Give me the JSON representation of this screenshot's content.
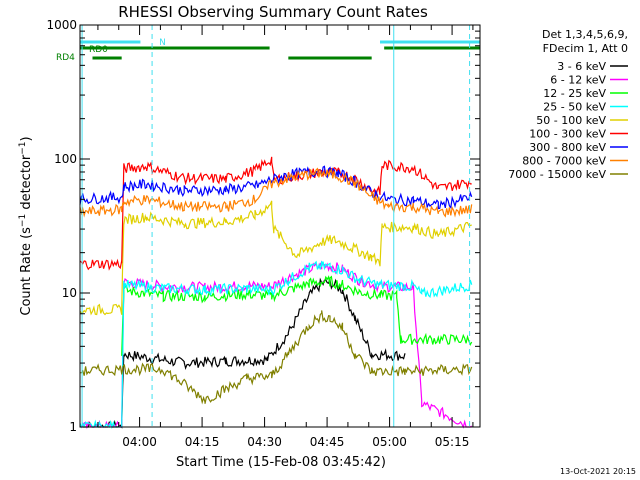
{
  "chart_data": {
    "type": "line",
    "title": "RHESSI Observing Summary Count Rates",
    "xlabel_prefix": "Start Time (",
    "xlabel": "Start Time (15-Feb-08 03:45:42)",
    "ylabel": "Count Rate (s⁻¹ detector⁻¹)",
    "y_scale": "log",
    "ylim": [
      1,
      1000
    ],
    "y_ticks": [
      "1",
      "10",
      "100",
      "1000"
    ],
    "xlim_minutes": [
      0,
      96
    ],
    "x_ticks": [
      {
        "minute": 14.3,
        "label": "04:00"
      },
      {
        "minute": 29.3,
        "label": "04:15"
      },
      {
        "minute": 44.3,
        "label": "04:30"
      },
      {
        "minute": 59.3,
        "label": "04:45"
      },
      {
        "minute": 74.3,
        "label": "05:00"
      },
      {
        "minute": 89.3,
        "label": "05:15"
      }
    ],
    "legend_header": [
      "Det 1,3,4,5,6,9,",
      "FDecim 1, Att 0"
    ],
    "series": [
      {
        "name": "3 - 6 keV",
        "color": "#000000",
        "points": [
          [
            0,
            1
          ],
          [
            6,
            1
          ],
          [
            10,
            1
          ],
          [
            10.5,
            3.5
          ],
          [
            25,
            3.0
          ],
          [
            35,
            3.1
          ],
          [
            45,
            3.2
          ],
          [
            50,
            5.0
          ],
          [
            55,
            9.5
          ],
          [
            58,
            11.8
          ],
          [
            60,
            12.0
          ],
          [
            63,
            10.5
          ],
          [
            66,
            6.5
          ],
          [
            70,
            3.5
          ],
          [
            78,
            3.4
          ]
        ]
      },
      {
        "name": "6 - 12 keV",
        "color": "#ff00ff",
        "points": [
          [
            0,
            1
          ],
          [
            10,
            1
          ],
          [
            10.5,
            12
          ],
          [
            20,
            11.2
          ],
          [
            30,
            11.0
          ],
          [
            40,
            11.3
          ],
          [
            46,
            11.2
          ],
          [
            50,
            13.0
          ],
          [
            55,
            15.0
          ],
          [
            58,
            16.0
          ],
          [
            60,
            16.0
          ],
          [
            63,
            15.0
          ],
          [
            67,
            12.5
          ],
          [
            72,
            11.2
          ],
          [
            80,
            11.0
          ],
          [
            82,
            1.5
          ],
          [
            94,
            1
          ]
        ]
      },
      {
        "name": "12 - 25 keV",
        "color": "#00ff00",
        "points": [
          [
            10,
            3.5
          ],
          [
            10.5,
            10.5
          ],
          [
            20,
            9.5
          ],
          [
            30,
            9.4
          ],
          [
            40,
            9.8
          ],
          [
            46,
            9.5
          ],
          [
            50,
            10.5
          ],
          [
            55,
            11.8
          ],
          [
            60,
            12.2
          ],
          [
            63,
            11.5
          ],
          [
            67,
            10.2
          ],
          [
            72,
            9.6
          ],
          [
            76,
            9.5
          ],
          [
            77,
            4.5
          ],
          [
            94,
            4.5
          ]
        ]
      },
      {
        "name": "25 - 50 keV",
        "color": "#00ffff",
        "points": [
          [
            0,
            1
          ],
          [
            10,
            1
          ],
          [
            10.5,
            11.5
          ],
          [
            20,
            10.8
          ],
          [
            30,
            10.6
          ],
          [
            40,
            10.8
          ],
          [
            46,
            10.5
          ],
          [
            50,
            12.5
          ],
          [
            55,
            15.5
          ],
          [
            58,
            15.8
          ],
          [
            60,
            15.8
          ],
          [
            63,
            14.8
          ],
          [
            67,
            12.5
          ],
          [
            72,
            11.5
          ],
          [
            80,
            11.2
          ],
          [
            82,
            9.8
          ],
          [
            94,
            11.5
          ]
        ]
      },
      {
        "name": "50 - 100 keV",
        "color": "#e0d000",
        "points": [
          [
            0,
            7.5
          ],
          [
            10,
            7.5
          ],
          [
            10.5,
            35
          ],
          [
            16,
            37
          ],
          [
            25,
            33
          ],
          [
            35,
            34
          ],
          [
            42,
            38
          ],
          [
            46,
            46
          ],
          [
            46.5,
            30
          ],
          [
            52,
            19
          ],
          [
            58,
            24
          ],
          [
            61,
            25
          ],
          [
            65,
            22
          ],
          [
            70,
            18.5
          ],
          [
            72,
            17
          ],
          [
            72.5,
            31
          ],
          [
            80,
            31
          ],
          [
            86,
            27
          ],
          [
            94,
            32
          ]
        ]
      },
      {
        "name": "100 - 300 keV",
        "color": "#ff0000",
        "points": [
          [
            0,
            16.5
          ],
          [
            10,
            16.5
          ],
          [
            10.5,
            85
          ],
          [
            16,
            88
          ],
          [
            25,
            72
          ],
          [
            35,
            71
          ],
          [
            42,
            82
          ],
          [
            46,
            100
          ],
          [
            46.5,
            70
          ],
          [
            52,
            75
          ],
          [
            58,
            80
          ],
          [
            62,
            79
          ],
          [
            66,
            72
          ],
          [
            70,
            58
          ],
          [
            72,
            56
          ],
          [
            72.5,
            90
          ],
          [
            80,
            86
          ],
          [
            86,
            60
          ],
          [
            94,
            68
          ]
        ]
      },
      {
        "name": "300 - 800 keV",
        "color": "#0000ff",
        "points": [
          [
            0,
            50
          ],
          [
            10,
            52
          ],
          [
            10.5,
            62
          ],
          [
            16,
            65
          ],
          [
            25,
            58
          ],
          [
            35,
            59
          ],
          [
            42,
            63
          ],
          [
            46,
            70
          ],
          [
            50,
            76
          ],
          [
            55,
            80
          ],
          [
            58,
            81
          ],
          [
            62,
            78
          ],
          [
            66,
            68
          ],
          [
            70,
            56
          ],
          [
            74,
            50
          ],
          [
            80,
            49
          ],
          [
            86,
            45
          ],
          [
            94,
            52
          ]
        ]
      },
      {
        "name": "800 - 7000 keV",
        "color": "#ff8000",
        "points": [
          [
            0,
            40
          ],
          [
            10,
            42
          ],
          [
            10.5,
            48
          ],
          [
            16,
            50
          ],
          [
            25,
            44
          ],
          [
            35,
            44
          ],
          [
            42,
            50
          ],
          [
            46,
            65
          ],
          [
            50,
            72
          ],
          [
            55,
            77
          ],
          [
            58,
            78
          ],
          [
            62,
            75
          ],
          [
            66,
            66
          ],
          [
            70,
            52
          ],
          [
            74,
            44
          ],
          [
            80,
            44
          ],
          [
            86,
            40
          ],
          [
            94,
            42
          ]
        ]
      },
      {
        "name": "7000 - 15000 keV",
        "color": "#808000",
        "points": [
          [
            0,
            2.6
          ],
          [
            10,
            2.7
          ],
          [
            20,
            2.7
          ],
          [
            30,
            1.6
          ],
          [
            40,
            2.3
          ],
          [
            46,
            2.4
          ],
          [
            50,
            3.5
          ],
          [
            55,
            5.8
          ],
          [
            58,
            6.8
          ],
          [
            60,
            6.5
          ],
          [
            63,
            5.5
          ],
          [
            66,
            3.5
          ],
          [
            70,
            2.6
          ],
          [
            78,
            2.6
          ],
          [
            94,
            2.7
          ]
        ]
      }
    ],
    "annotations": {
      "rd0_label": "RD0",
      "rd4_label": "RD4",
      "n_label": "N"
    },
    "footer_date": "13-Oct-2021 20:15"
  }
}
